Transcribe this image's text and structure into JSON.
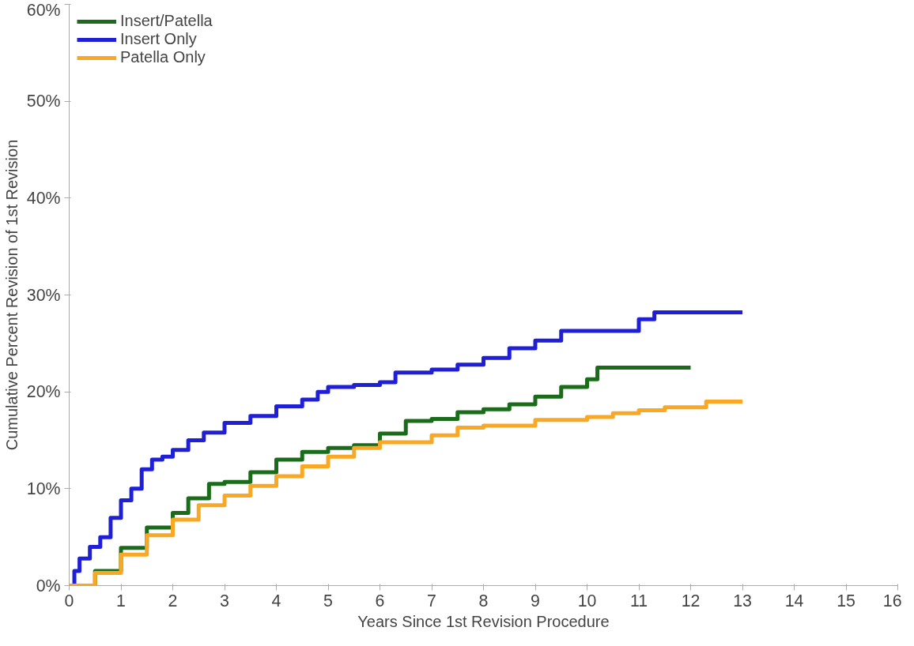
{
  "chart_data": {
    "type": "step",
    "xlabel": "Years Since 1st Revision Procedure",
    "ylabel": "Cumulative Percent Revision of 1st Revision",
    "xlim": [
      0,
      16
    ],
    "xticks": [
      0,
      1,
      2,
      3,
      4,
      5,
      6,
      7,
      8,
      9,
      10,
      11,
      12,
      13,
      14,
      15,
      16
    ],
    "ylim": [
      0,
      60
    ],
    "yticks": [
      {
        "value": 0,
        "label": "0%"
      },
      {
        "value": 10,
        "label": "10%"
      },
      {
        "value": 20,
        "label": "20%"
      },
      {
        "value": 30,
        "label": "30%"
      },
      {
        "value": 40,
        "label": "40%"
      },
      {
        "value": 50,
        "label": "50%"
      },
      {
        "value": 60,
        "label": "60%"
      }
    ],
    "grid": false,
    "legend": "top left",
    "marker": "none",
    "line_style": "solid",
    "series": [
      {
        "name": "Insert/Patella",
        "color": "#1a6b1a",
        "x": [
          0,
          0.5,
          1,
          1.5,
          2,
          2.3,
          2.7,
          3,
          3.5,
          4,
          4.5,
          5,
          5.5,
          6,
          6.5,
          7,
          7.5,
          8,
          8.5,
          9,
          9.5,
          10,
          10.2,
          12
        ],
        "values": [
          0,
          1.5,
          3.9,
          6,
          7.5,
          9,
          10.5,
          10.7,
          11.7,
          13,
          13.8,
          14.2,
          14.5,
          15.7,
          17,
          17.2,
          17.9,
          18.2,
          18.7,
          19.5,
          20.5,
          21.3,
          22.5,
          22.5
        ]
      },
      {
        "name": "Insert Only",
        "color": "#1f1fd6",
        "x": [
          0,
          0.1,
          0.2,
          0.4,
          0.6,
          0.8,
          1,
          1.2,
          1.4,
          1.6,
          1.8,
          2,
          2.3,
          2.6,
          3,
          3.5,
          4,
          4.5,
          4.8,
          5,
          5.5,
          6,
          6.3,
          7,
          7.5,
          8,
          8.5,
          9,
          9.5,
          10.8,
          11,
          11.3,
          13
        ],
        "values": [
          0,
          1.5,
          2.8,
          4,
          5,
          7,
          8.8,
          10,
          12,
          13,
          13.3,
          14,
          15,
          15.8,
          16.8,
          17.5,
          18.5,
          19.2,
          20,
          20.5,
          20.7,
          21,
          22,
          22.3,
          22.8,
          23.5,
          24.5,
          25.3,
          26.3,
          26.3,
          27.5,
          28.2,
          28.2
        ]
      },
      {
        "name": "Patella Only",
        "color": "#f9a825",
        "x": [
          0,
          0.5,
          1,
          1.5,
          2,
          2.5,
          3,
          3.5,
          4,
          4.5,
          5,
          5.5,
          6,
          7,
          7.5,
          8,
          9,
          10,
          10.5,
          11,
          11.5,
          12.3,
          13
        ],
        "values": [
          0,
          1.3,
          3.2,
          5.2,
          6.8,
          8.3,
          9.3,
          10.3,
          11.3,
          12.3,
          13.3,
          14.2,
          14.8,
          15.5,
          16.3,
          16.5,
          17.1,
          17.4,
          17.8,
          18.1,
          18.4,
          19,
          19
        ]
      }
    ]
  }
}
